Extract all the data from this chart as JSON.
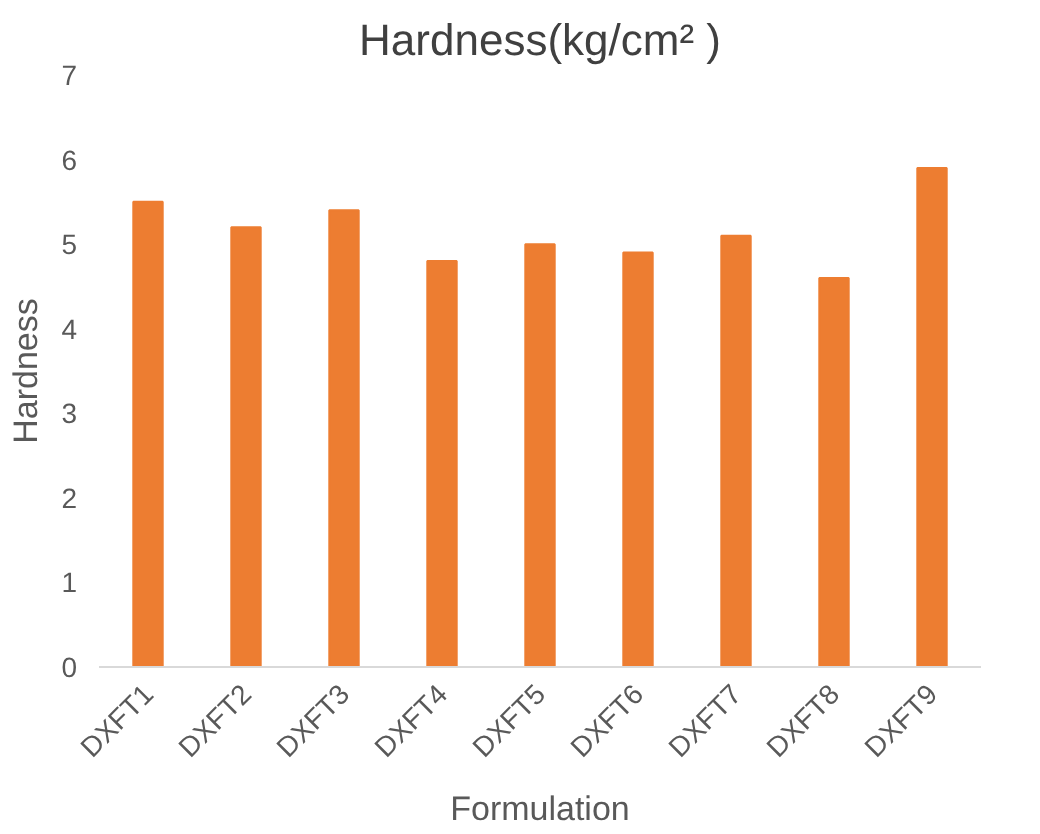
{
  "chart_data": {
    "type": "bar",
    "title": "Hardness(kg/cm² )",
    "xlabel": "Formulation",
    "ylabel": "Hardness",
    "categories": [
      "DXFT1",
      "DXFT2",
      "DXFT3",
      "DXFT4",
      "DXFT5",
      "DXFT6",
      "DXFT7",
      "DXFT8",
      "DXFT9"
    ],
    "values": [
      5.5,
      5.2,
      5.4,
      4.8,
      5.0,
      4.9,
      5.1,
      4.6,
      5.9
    ],
    "color": "#ed7d31",
    "ylim": [
      0,
      7
    ],
    "yticks": [
      0,
      1,
      2,
      3,
      4,
      5,
      6,
      7
    ],
    "grid": false
  }
}
